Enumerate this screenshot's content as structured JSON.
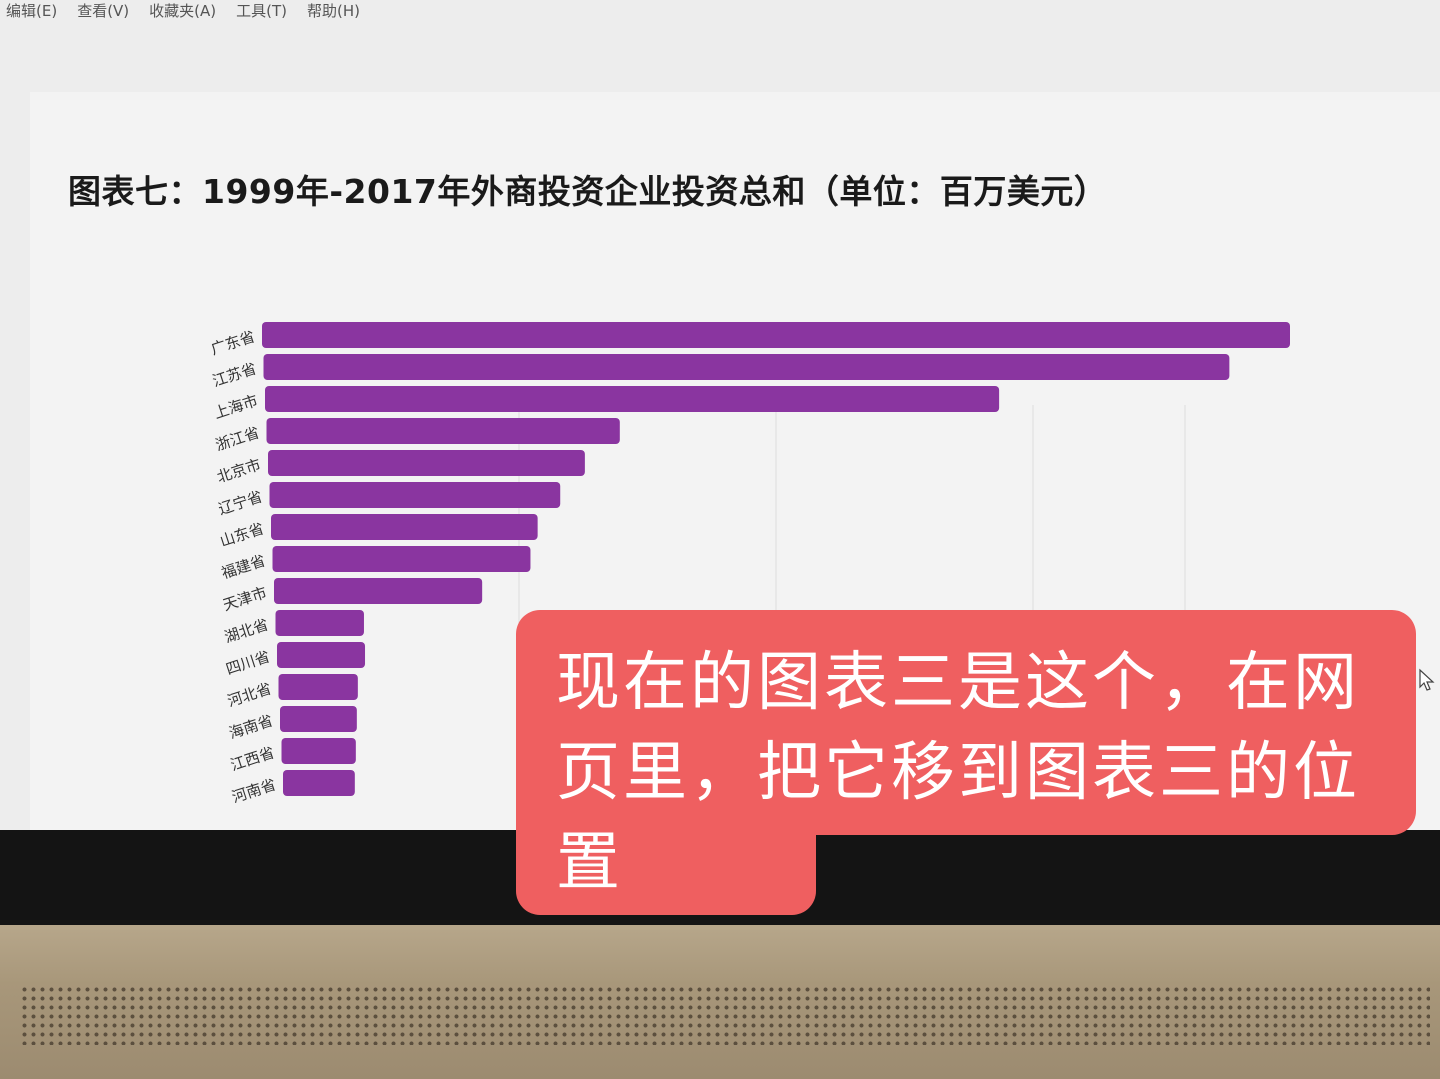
{
  "menu": [
    "编辑(E)",
    "查看(V)",
    "收藏夹(A)",
    "工具(T)",
    "帮助(H)"
  ],
  "chart_data": {
    "type": "bar",
    "orientation": "horizontal",
    "title": "图表七：1999年-2017年外商投资企业投资总和（单位：百万美元）",
    "categories": [
      "广东省",
      "江苏省",
      "上海市",
      "浙江省",
      "北京市",
      "辽宁省",
      "山东省",
      "福建省",
      "天津市",
      "湖北省",
      "四川省",
      "河北省",
      "海南省",
      "江西省",
      "河南省"
    ],
    "values": [
      1000,
      940,
      715,
      345,
      310,
      285,
      262,
      254,
      206,
      90,
      90,
      82,
      80,
      78,
      76
    ],
    "xlim": [
      0,
      1000
    ],
    "grid": true,
    "bar_color": "#8a35a0"
  },
  "overlay_note": "现在的图表三是这个，在网页里，把它移到图表三的位置",
  "colors": {
    "note_bg": "#ef5f60",
    "screen_bg": "#f3f3f3"
  }
}
